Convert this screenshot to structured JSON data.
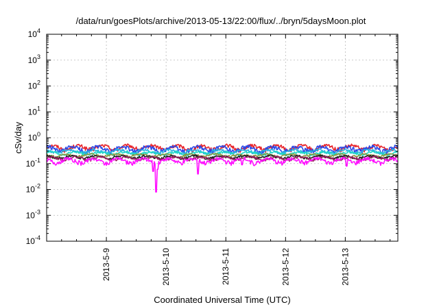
{
  "chart_data": {
    "type": "line",
    "title": "/data/run/goesPlots/archive/2013-05-13/22:00/flux/../bryn/5daysMoon.plot",
    "xlabel": "Coordinated Universal Time (UTC)",
    "ylabel": "cSv/day",
    "yscale": "log",
    "ylim": [
      0.0001,
      10000
    ],
    "xlim": [
      0,
      5.88
    ],
    "grid": true,
    "y_ticks": [
      {
        "exp": "-4",
        "value": 0.0001
      },
      {
        "exp": "-3",
        "value": 0.001
      },
      {
        "exp": "-2",
        "value": 0.01
      },
      {
        "exp": "-1",
        "value": 0.1
      },
      {
        "exp": "0",
        "value": 1
      },
      {
        "exp": "1",
        "value": 10
      },
      {
        "exp": "2",
        "value": 100
      },
      {
        "exp": "3",
        "value": 1000
      },
      {
        "exp": "4",
        "value": 10000
      }
    ],
    "x_ticks": [
      {
        "label": "2013-5-9",
        "value": 1
      },
      {
        "label": "2013-5-10",
        "value": 2
      },
      {
        "label": "2013-5-11",
        "value": 3
      },
      {
        "label": "2013-5-12",
        "value": 4
      },
      {
        "label": "2013-5-13",
        "value": 5
      }
    ],
    "series": [
      {
        "color": "#e8242a",
        "base": 0.42,
        "amp": 0.08,
        "phase": 0.0,
        "dips": []
      },
      {
        "color": "#2a48e8",
        "base": 0.37,
        "amp": 0.08,
        "phase": 1.3,
        "dips": []
      },
      {
        "color": "#2ab0e0",
        "base": 0.3,
        "amp": 0.04,
        "phase": 2.1,
        "dips": []
      },
      {
        "color": "#1ed8c8",
        "base": 0.25,
        "amp": 0.03,
        "phase": 0.7,
        "dips": []
      },
      {
        "color": "#8a9a40",
        "base": 0.21,
        "amp": 0.02,
        "phase": 2.9,
        "dips": []
      },
      {
        "color": "#202020",
        "base": 0.18,
        "amp": 0.02,
        "phase": 1.7,
        "dips": []
      },
      {
        "color": "#9a2060",
        "base": 0.16,
        "amp": 0.02,
        "phase": 0.4,
        "dips": []
      },
      {
        "color": "#ff10ff",
        "base": 0.13,
        "amp": 0.025,
        "phase": 2.4,
        "dips": [
          [
            1.78,
            0.05
          ],
          [
            1.83,
            0.008
          ],
          [
            1.86,
            0.06
          ],
          [
            2.53,
            0.04
          ],
          [
            3.27,
            0.09
          ],
          [
            5.02,
            0.08
          ]
        ]
      }
    ]
  }
}
